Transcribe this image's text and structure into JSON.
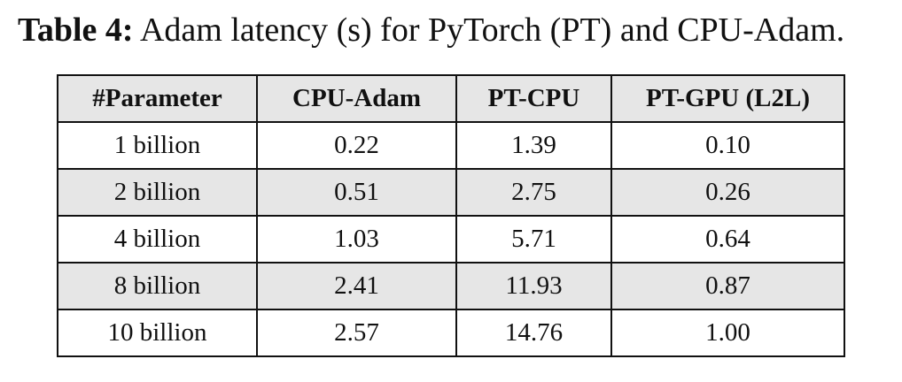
{
  "caption": {
    "label": "Table 4:",
    "text": "Adam latency (s) for PyTorch (PT) and CPU-Adam."
  },
  "table": {
    "headers": [
      "#Parameter",
      "CPU-Adam",
      "PT-CPU",
      "PT-GPU (L2L)"
    ],
    "rows": [
      [
        "1 billion",
        "0.22",
        "1.39",
        "0.10"
      ],
      [
        "2 billion",
        "0.51",
        "2.75",
        "0.26"
      ],
      [
        "4 billion",
        "1.03",
        "5.71",
        "0.64"
      ],
      [
        "8 billion",
        "2.41",
        "11.93",
        "0.87"
      ],
      [
        "10 billion",
        "2.57",
        "14.76",
        "1.00"
      ]
    ]
  },
  "colors": {
    "shaded_row": "#e6e6e6",
    "border": "#111111"
  }
}
